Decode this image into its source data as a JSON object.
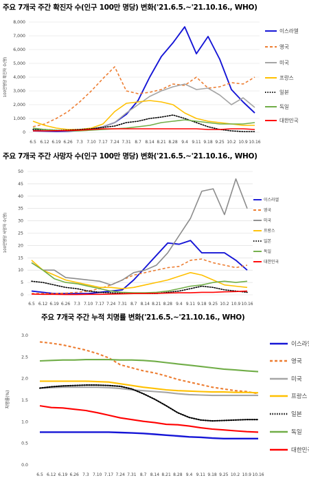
{
  "chart_data": [
    {
      "type": "line",
      "title": "주요 7개국 주간 확진자 수(인구 100만 명당) 변화('21.6.5.~'21.10.16., WHO)",
      "ylabel": "100만명당 확진자 수(명)",
      "xlabel": "",
      "categories": [
        "6.5",
        "6.12",
        "6.19",
        "6.26",
        "7.3",
        "7.10",
        "7.17",
        "7.24",
        "7.31",
        "8.7",
        "8.14",
        "8.21",
        "8.28",
        "9.4",
        "9.11",
        "9.18",
        "9.25",
        "10.2",
        "10.9",
        "10.16"
      ],
      "ylim": [
        0,
        8000
      ],
      "ytick_labels": [
        "0",
        "1,000",
        "2,000",
        "3,000",
        "4,000",
        "5,000",
        "6,000",
        "7,000",
        "8,000"
      ],
      "grid": true,
      "legend": "right",
      "series": [
        {
          "name": "이스라엘",
          "color": "#1515d6",
          "style": "solid",
          "values": [
            100,
            80,
            60,
            70,
            120,
            200,
            400,
            700,
            1300,
            2300,
            4000,
            5500,
            6500,
            7650,
            5700,
            6950,
            5300,
            3100,
            2200,
            1400
          ]
        },
        {
          "name": "영국",
          "color": "#ed7d31",
          "style": "dashed",
          "values": [
            400,
            600,
            1000,
            1500,
            2200,
            3000,
            3900,
            4750,
            3000,
            2800,
            2900,
            3100,
            3500,
            3400,
            4000,
            3200,
            3300,
            3600,
            3500,
            4000
          ]
        },
        {
          "name": "미국",
          "color": "#a5a5a5",
          "style": "solid",
          "values": [
            150,
            150,
            120,
            100,
            150,
            250,
            400,
            700,
            1400,
            2000,
            2600,
            3000,
            3300,
            3500,
            3100,
            3200,
            2700,
            2000,
            2500,
            1800
          ]
        },
        {
          "name": "프랑스",
          "color": "#ffc000",
          "style": "solid",
          "values": [
            800,
            500,
            300,
            200,
            200,
            300,
            600,
            1500,
            2100,
            2200,
            2300,
            2200,
            2000,
            1400,
            1000,
            800,
            700,
            600,
            500,
            500
          ]
        },
        {
          "name": "일본",
          "color": "#000000",
          "style": "dotted",
          "values": [
            200,
            200,
            150,
            150,
            200,
            250,
            350,
            450,
            700,
            800,
            1000,
            1100,
            1250,
            1000,
            700,
            400,
            200,
            100,
            50,
            50
          ]
        },
        {
          "name": "독일",
          "color": "#70ad47",
          "style": "solid",
          "values": [
            300,
            200,
            150,
            100,
            100,
            150,
            200,
            250,
            300,
            400,
            500,
            700,
            800,
            900,
            800,
            700,
            600,
            600,
            600,
            700
          ]
        },
        {
          "name": "대한민국",
          "color": "#ff0000",
          "style": "solid",
          "values": [
            100,
            100,
            110,
            120,
            150,
            200,
            250,
            250,
            250,
            250,
            250,
            250,
            250,
            250,
            250,
            200,
            200,
            250,
            250,
            200
          ]
        }
      ]
    },
    {
      "type": "line",
      "title": "주요 7개국 주간 사망자 수(인구 100만 명당) 변화('21.6.5.~'21.10.16., WHO)",
      "ylabel": "100만명당 사망자 수(명)",
      "xlabel": "",
      "categories": [
        "6.5",
        "6.12",
        "6.19",
        "6.26",
        "7.3",
        "7.10",
        "7.17",
        "7.24",
        "7.31",
        "8.7",
        "8.14",
        "8.21",
        "8.28",
        "9.4",
        "9.11",
        "9.18",
        "9.25",
        "10.2",
        "10.9",
        "10.16"
      ],
      "ylim": [
        0,
        50
      ],
      "ytick_labels": [
        "0",
        "5",
        "10",
        "15",
        "20",
        "25",
        "30",
        "35",
        "40",
        "45",
        "50"
      ],
      "grid": true,
      "legend": "right",
      "series": [
        {
          "name": "이스라엘",
          "color": "#1515d6",
          "style": "solid",
          "values": [
            1.5,
            1,
            0.5,
            0.5,
            0.5,
            0.5,
            1,
            1.5,
            2,
            6,
            11,
            16,
            21,
            20.5,
            22,
            17,
            17,
            17,
            14,
            10
          ]
        },
        {
          "name": "영국",
          "color": "#ed7d31",
          "style": "dashed",
          "values": [
            0.5,
            0.5,
            0.5,
            0.7,
            1,
            1.5,
            2.5,
            4,
            6,
            8,
            9,
            10,
            11,
            11.5,
            14,
            14.5,
            13,
            12,
            11,
            12
          ]
        },
        {
          "name": "미국",
          "color": "#8c8c8c",
          "style": "solid",
          "values": [
            13,
            10,
            10,
            7,
            6.5,
            6,
            5.5,
            4,
            6,
            9,
            10,
            12,
            17,
            24,
            31,
            42,
            43,
            32.5,
            47,
            35
          ]
        },
        {
          "name": "프랑스",
          "color": "#ffc000",
          "style": "solid",
          "values": [
            14,
            10,
            8,
            6,
            5,
            4,
            3,
            3,
            2.5,
            3,
            4,
            5,
            6,
            7.5,
            9,
            8,
            6,
            4,
            3.5,
            3
          ]
        },
        {
          "name": "일본",
          "color": "#000000",
          "style": "dotted",
          "values": [
            5.5,
            5,
            4,
            3,
            2.5,
            1.5,
            1,
            0.8,
            0.6,
            0.5,
            0.5,
            0.5,
            1,
            1.5,
            2.5,
            3.5,
            3,
            2,
            1.5,
            1
          ]
        },
        {
          "name": "독일",
          "color": "#70ad47",
          "style": "solid",
          "values": [
            13,
            10,
            6.5,
            5,
            4.5,
            3.5,
            2.5,
            1.5,
            1,
            0.8,
            0.8,
            1,
            1.5,
            2.5,
            3.5,
            4,
            5,
            5.5,
            5,
            5.5
          ]
        },
        {
          "name": "대한민국",
          "color": "#ff0000",
          "style": "solid",
          "values": [
            0.3,
            0.2,
            0.2,
            0.1,
            0.1,
            0.2,
            0.2,
            0.3,
            0.4,
            0.5,
            0.5,
            0.6,
            0.7,
            0.8,
            0.8,
            1,
            1,
            1.2,
            1.3,
            1.5
          ]
        }
      ]
    },
    {
      "type": "line",
      "title": "주요 7개국 주간 누적 치명률 변화('21.6.5.~'21.10.16., WHO)",
      "ylabel": "치명률(%)",
      "xlabel": "",
      "categories": [
        "6.5",
        "6.12",
        "6.19",
        "6.26",
        "7.3",
        "7.10",
        "7.17",
        "7.24",
        "7.31",
        "8.7",
        "8.14",
        "8.21",
        "8.28",
        "9.4",
        "9.11",
        "9.18",
        "9.25",
        "10.2",
        "10.9",
        "10.16"
      ],
      "ylim": [
        0,
        3.0
      ],
      "ytick_labels": [
        "0.0",
        "0.5",
        "1.0",
        "1.5",
        "2.0",
        "2.5",
        "3.0"
      ],
      "grid": false,
      "legend": "right",
      "series": [
        {
          "name": "이스라엘",
          "color": "#1515d6",
          "style": "solid",
          "values": [
            0.76,
            0.76,
            0.76,
            0.76,
            0.76,
            0.76,
            0.76,
            0.75,
            0.74,
            0.73,
            0.71,
            0.69,
            0.67,
            0.65,
            0.64,
            0.62,
            0.61,
            0.61,
            0.61,
            0.61
          ]
        },
        {
          "name": "영국",
          "color": "#ed7d31",
          "style": "dashed",
          "values": [
            2.85,
            2.82,
            2.78,
            2.72,
            2.66,
            2.58,
            2.48,
            2.32,
            2.25,
            2.18,
            2.13,
            2.06,
            1.98,
            1.92,
            1.86,
            1.8,
            1.76,
            1.72,
            1.7,
            1.65
          ]
        },
        {
          "name": "미국",
          "color": "#a5a5a5",
          "style": "solid",
          "values": [
            1.78,
            1.79,
            1.8,
            1.8,
            1.8,
            1.8,
            1.79,
            1.77,
            1.74,
            1.72,
            1.7,
            1.68,
            1.65,
            1.63,
            1.62,
            1.61,
            1.61,
            1.61,
            1.61,
            1.61
          ]
        },
        {
          "name": "프랑스",
          "color": "#ffc000",
          "style": "solid",
          "values": [
            1.94,
            1.94,
            1.94,
            1.94,
            1.94,
            1.93,
            1.92,
            1.88,
            1.84,
            1.8,
            1.77,
            1.74,
            1.72,
            1.71,
            1.7,
            1.69,
            1.69,
            1.68,
            1.68,
            1.67
          ]
        },
        {
          "name": "일본",
          "color": "#000000",
          "style": "dotted",
          "values": [
            1.78,
            1.81,
            1.83,
            1.84,
            1.85,
            1.85,
            1.84,
            1.82,
            1.76,
            1.65,
            1.52,
            1.37,
            1.21,
            1.1,
            1.04,
            1.02,
            1.03,
            1.04,
            1.05,
            1.05
          ]
        },
        {
          "name": "독일",
          "color": "#70ad47",
          "style": "solid",
          "values": [
            2.41,
            2.42,
            2.43,
            2.43,
            2.44,
            2.44,
            2.44,
            2.43,
            2.43,
            2.42,
            2.4,
            2.37,
            2.34,
            2.31,
            2.28,
            2.25,
            2.22,
            2.2,
            2.18,
            2.16
          ]
        },
        {
          "name": "대한민국",
          "color": "#ff0000",
          "style": "solid",
          "values": [
            1.37,
            1.33,
            1.32,
            1.29,
            1.26,
            1.21,
            1.15,
            1.09,
            1.05,
            1.01,
            0.98,
            0.94,
            0.93,
            0.9,
            0.86,
            0.83,
            0.81,
            0.79,
            0.77,
            0.76
          ]
        }
      ]
    }
  ]
}
